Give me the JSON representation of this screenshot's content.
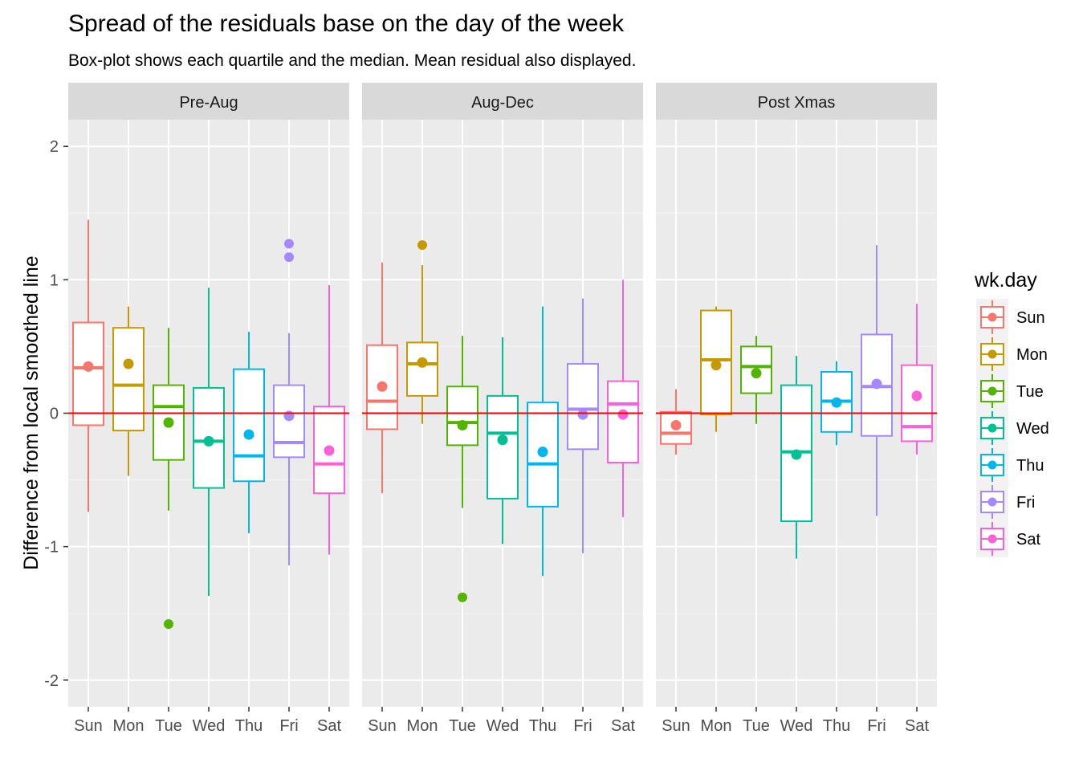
{
  "chart_data": {
    "type": "boxplot",
    "title": "Spread of the residuals base on the day of the week",
    "subtitle": "Box-plot shows each quartile and the median. Mean residual also displayed.",
    "ylabel": "Difference from local smoothed line",
    "xlabel": "",
    "ylim": [
      -2.2,
      2.2
    ],
    "yticks": [
      -2,
      -1,
      0,
      1,
      2
    ],
    "y_tick_labels": [
      "-2",
      "-1",
      "0",
      "1",
      "2"
    ],
    "reference_line": {
      "y": 0,
      "color": "#ff0000"
    },
    "categories": [
      "Sun",
      "Mon",
      "Tue",
      "Wed",
      "Thu",
      "Fri",
      "Sat"
    ],
    "colors": {
      "Sun": "#f8766d",
      "Mon": "#c49a00",
      "Tue": "#53b400",
      "Wed": "#00c094",
      "Thu": "#00b6eb",
      "Fri": "#a58aff",
      "Sat": "#fb61d7"
    },
    "legend": {
      "title": "wk.day",
      "position": "right",
      "entries": [
        "Sun",
        "Mon",
        "Tue",
        "Wed",
        "Thu",
        "Fri",
        "Sat"
      ]
    },
    "grid": true,
    "facets": [
      {
        "label": "Pre-Aug",
        "boxes": [
          {
            "day": "Sun",
            "min": -0.74,
            "q1": -0.09,
            "median": 0.34,
            "q3": 0.68,
            "max": 1.45,
            "mean": 0.35,
            "outliers": []
          },
          {
            "day": "Mon",
            "min": -0.47,
            "q1": -0.13,
            "median": 0.21,
            "q3": 0.64,
            "max": 0.8,
            "mean": 0.37,
            "outliers": []
          },
          {
            "day": "Tue",
            "min": -0.73,
            "q1": -0.35,
            "median": 0.05,
            "q3": 0.21,
            "max": 0.64,
            "mean": -0.07,
            "outliers": [
              -1.58
            ]
          },
          {
            "day": "Wed",
            "min": -1.37,
            "q1": -0.56,
            "median": -0.21,
            "q3": 0.19,
            "max": 0.94,
            "mean": -0.21,
            "outliers": []
          },
          {
            "day": "Thu",
            "min": -0.9,
            "q1": -0.51,
            "median": -0.32,
            "q3": 0.33,
            "max": 0.61,
            "mean": -0.16,
            "outliers": []
          },
          {
            "day": "Fri",
            "min": -1.14,
            "q1": -0.33,
            "median": -0.22,
            "q3": 0.21,
            "max": 0.6,
            "mean": -0.02,
            "outliers": [
              1.27,
              1.17
            ]
          },
          {
            "day": "Sat",
            "min": -1.06,
            "q1": -0.6,
            "median": -0.38,
            "q3": 0.05,
            "max": 0.96,
            "mean": -0.28,
            "outliers": []
          }
        ]
      },
      {
        "label": "Aug-Dec",
        "boxes": [
          {
            "day": "Sun",
            "min": -0.6,
            "q1": -0.12,
            "median": 0.09,
            "q3": 0.51,
            "max": 1.13,
            "mean": 0.2,
            "outliers": []
          },
          {
            "day": "Mon",
            "min": -0.08,
            "q1": 0.13,
            "median": 0.37,
            "q3": 0.53,
            "max": 1.11,
            "mean": 0.38,
            "outliers": [
              1.26
            ]
          },
          {
            "day": "Tue",
            "min": -0.71,
            "q1": -0.24,
            "median": -0.07,
            "q3": 0.2,
            "max": 0.58,
            "mean": -0.09,
            "outliers": [
              -1.38
            ]
          },
          {
            "day": "Wed",
            "min": -0.98,
            "q1": -0.64,
            "median": -0.15,
            "q3": 0.13,
            "max": 0.57,
            "mean": -0.2,
            "outliers": []
          },
          {
            "day": "Thu",
            "min": -1.22,
            "q1": -0.7,
            "median": -0.38,
            "q3": 0.08,
            "max": 0.8,
            "mean": -0.29,
            "outliers": []
          },
          {
            "day": "Fri",
            "min": -1.05,
            "q1": -0.27,
            "median": 0.03,
            "q3": 0.37,
            "max": 0.86,
            "mean": -0.01,
            "outliers": []
          },
          {
            "day": "Sat",
            "min": -0.78,
            "q1": -0.37,
            "median": 0.07,
            "q3": 0.24,
            "max": 1.0,
            "mean": -0.01,
            "outliers": []
          }
        ]
      },
      {
        "label": "Post Xmas",
        "boxes": [
          {
            "day": "Sun",
            "min": -0.31,
            "q1": -0.23,
            "median": -0.15,
            "q3": 0.01,
            "max": 0.18,
            "mean": -0.09,
            "outliers": []
          },
          {
            "day": "Mon",
            "min": -0.14,
            "q1": -0.01,
            "median": 0.4,
            "q3": 0.77,
            "max": 0.8,
            "mean": 0.36,
            "outliers": []
          },
          {
            "day": "Tue",
            "min": -0.08,
            "q1": 0.15,
            "median": 0.35,
            "q3": 0.5,
            "max": 0.58,
            "mean": 0.3,
            "outliers": []
          },
          {
            "day": "Wed",
            "min": -1.09,
            "q1": -0.81,
            "median": -0.29,
            "q3": 0.21,
            "max": 0.43,
            "mean": -0.31,
            "outliers": []
          },
          {
            "day": "Thu",
            "min": -0.24,
            "q1": -0.14,
            "median": 0.09,
            "q3": 0.31,
            "max": 0.39,
            "mean": 0.08,
            "outliers": []
          },
          {
            "day": "Fri",
            "min": -0.77,
            "q1": -0.17,
            "median": 0.2,
            "q3": 0.59,
            "max": 1.26,
            "mean": 0.22,
            "outliers": []
          },
          {
            "day": "Sat",
            "min": -0.31,
            "q1": -0.21,
            "median": -0.1,
            "q3": 0.36,
            "max": 0.82,
            "mean": 0.13,
            "outliers": []
          }
        ]
      }
    ]
  }
}
